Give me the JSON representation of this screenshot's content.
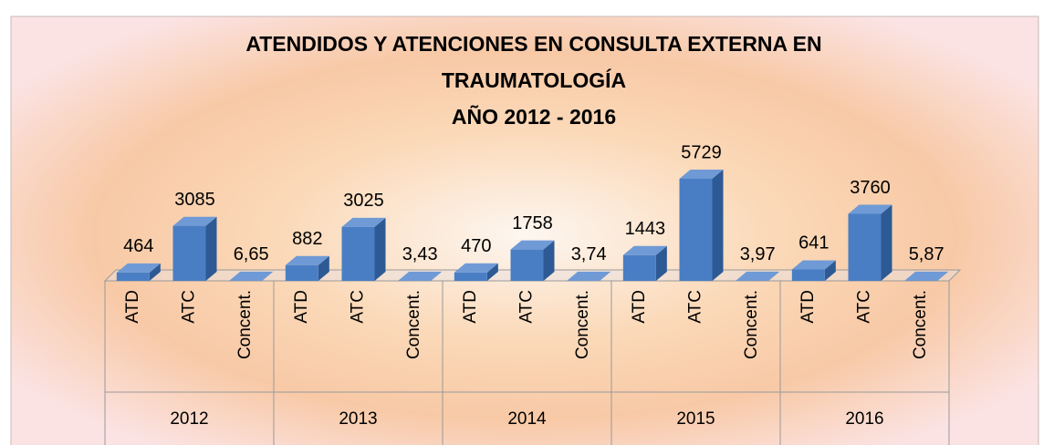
{
  "chart_data": {
    "type": "bar3d",
    "title": [
      "ATENDIDOS Y ATENCIONES EN CONSULTA EXTERNA EN",
      "TRAUMATOLOGÍA",
      "AÑO 2012 - 2016"
    ],
    "groups": [
      "2012",
      "2013",
      "2014",
      "2015",
      "2016"
    ],
    "categories": [
      "ATD",
      "ATC",
      "Concent.",
      "ATD",
      "ATC",
      "Concent.",
      "ATD",
      "ATC",
      "Concent.",
      "ATD",
      "ATC",
      "Concent.",
      "ATD",
      "ATC",
      "Concent."
    ],
    "values": [
      464,
      3085,
      6.65,
      882,
      3025,
      3.43,
      470,
      1758,
      3.74,
      1443,
      5729,
      3.97,
      641,
      3760,
      5.87
    ],
    "value_labels": [
      "464",
      "3085",
      "6,65",
      "882",
      "3025",
      "3,43",
      "470",
      "1758",
      "3,74",
      "1443",
      "5729",
      "3,97",
      "641",
      "3760",
      "5,87"
    ],
    "color": "#4a7ec4"
  }
}
